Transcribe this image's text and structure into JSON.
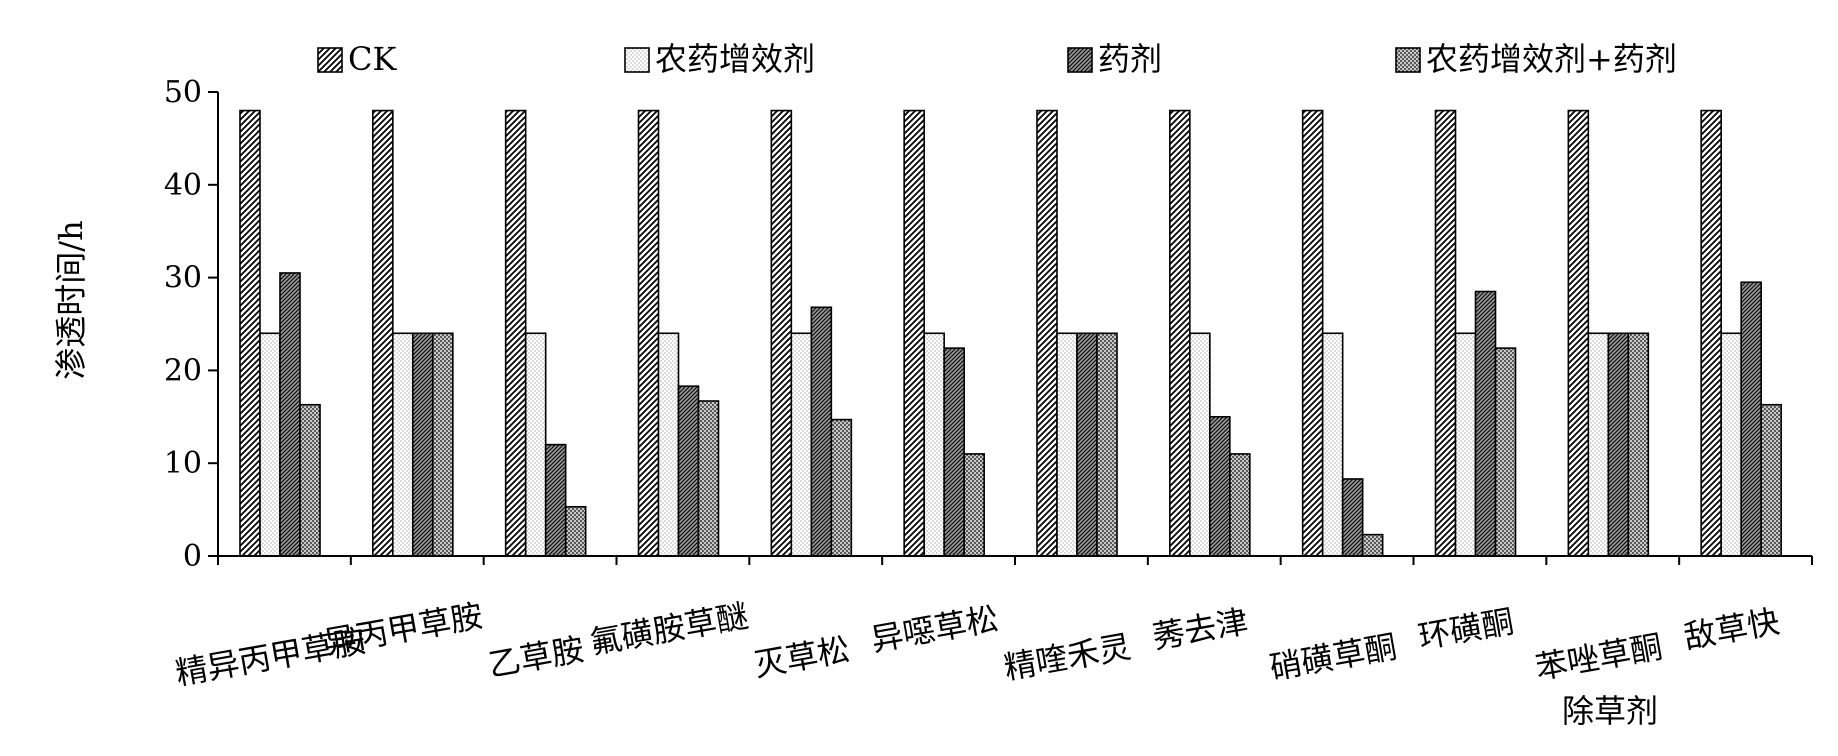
{
  "chart_data": {
    "type": "bar",
    "ylabel": "渗透时间/h",
    "xlabel": "除草剂",
    "ylim": [
      0,
      50
    ],
    "yticks": [
      0,
      10,
      20,
      30,
      40,
      50
    ],
    "grid": false,
    "legend_position": "top",
    "categories": [
      "精异丙甲草胺",
      "异丙甲草胺",
      "乙草胺",
      "氟磺胺草醚",
      "灭草松",
      "异噁草松",
      "精喹禾灵",
      "莠去津",
      "硝磺草酮",
      "环磺酮",
      "苯唑草酮",
      "敌草快"
    ],
    "series": [
      {
        "name": "CK",
        "pattern": "diagonal-hatch",
        "values": [
          48,
          48,
          48,
          48,
          48,
          48,
          48,
          48,
          48,
          48,
          48,
          48
        ]
      },
      {
        "name": "农药增效剂",
        "pattern": "light-dots",
        "values": [
          24,
          24,
          24,
          24,
          24,
          24,
          24,
          24,
          24,
          24,
          24,
          24
        ]
      },
      {
        "name": "药剂",
        "pattern": "dense-hatch",
        "values": [
          30.5,
          24,
          12,
          18.3,
          26.8,
          22.4,
          24,
          15,
          8.3,
          28.5,
          24,
          29.5
        ]
      },
      {
        "name": "农药增效剂+药剂",
        "pattern": "dark-dots",
        "values": [
          16.3,
          24,
          5.3,
          16.7,
          14.7,
          11,
          24,
          11,
          2.3,
          22.4,
          24,
          16.3
        ]
      }
    ]
  }
}
